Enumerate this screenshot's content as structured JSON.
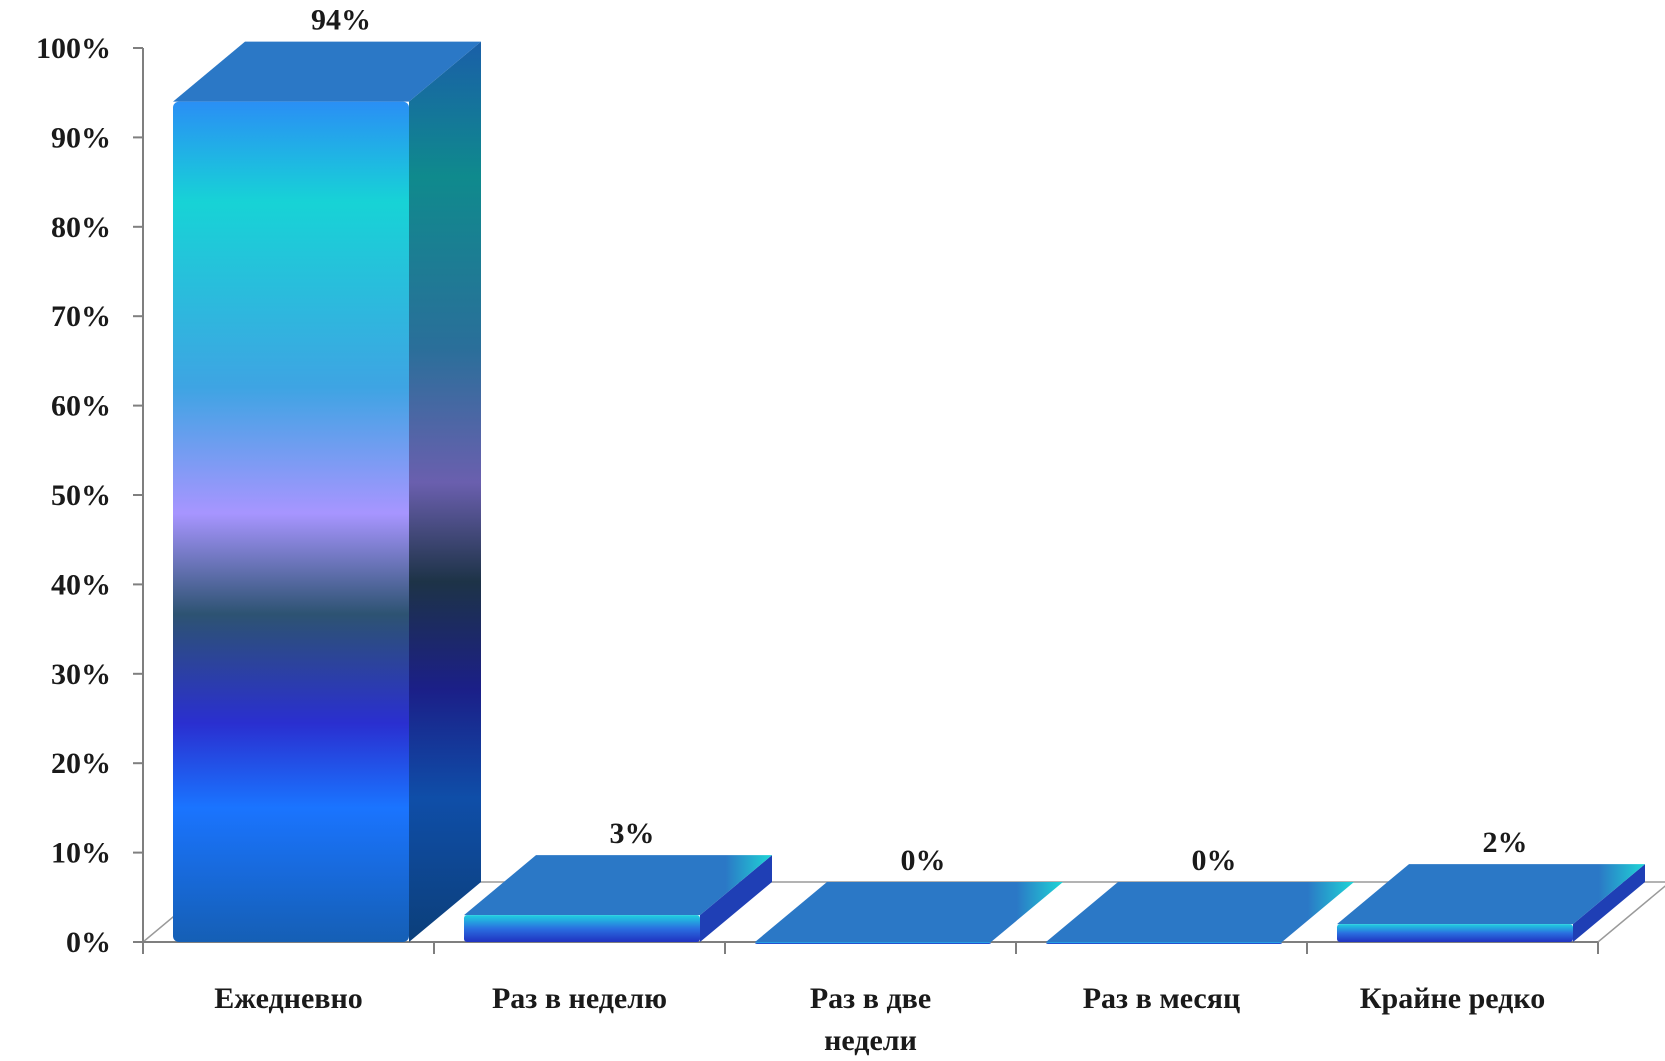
{
  "chart_data": {
    "type": "bar",
    "categories": [
      "Ежедневно",
      "Раз в неделю",
      "Раз в две недели",
      "Раз в месяц",
      "Крайне редко"
    ],
    "category_lines": [
      [
        "Ежедневно"
      ],
      [
        "Раз в неделю"
      ],
      [
        "Раз в две",
        "недели"
      ],
      [
        "Раз в месяц"
      ],
      [
        "Крайне редко"
      ]
    ],
    "values": [
      94,
      3,
      0,
      0,
      2
    ],
    "data_labels": [
      "94%",
      "3%",
      "0%",
      "0%",
      "2%"
    ],
    "yticks": [
      0,
      10,
      20,
      30,
      40,
      50,
      60,
      70,
      80,
      90,
      100
    ],
    "ytick_labels": [
      "0%",
      "10%",
      "20%",
      "30%",
      "40%",
      "50%",
      "60%",
      "70%",
      "80%",
      "90%",
      "100%"
    ],
    "ylim": [
      0,
      100
    ],
    "style": "3d",
    "grid": false,
    "legend": false,
    "colors": {
      "bar_top": "#2b78c6",
      "bar_cyan": "#1fd6d6",
      "bar_violet": "#a994ff",
      "bar_dark": "#233c6e",
      "bar_indigo": "#2b2fc8",
      "bar_blue": "#1676ff",
      "bar_base": "#1462b8",
      "axis": "#7f7f7f"
    }
  }
}
